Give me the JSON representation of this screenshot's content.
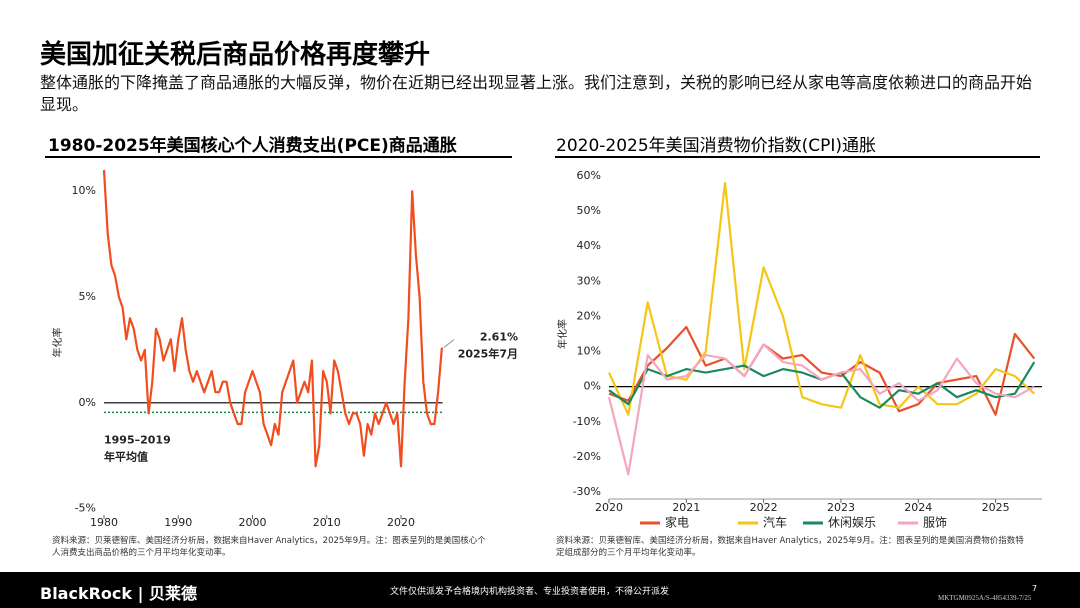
{
  "header": {
    "title": "美国加征关税后商品价格再度攀升",
    "subtitle": "整体通胀的下降掩盖了商品通胀的大幅反弹，物价在近期已经出现显著上涨。我们注意到，关税的影响已经从家电等高度依赖进口的商品开始显现。"
  },
  "chart_data": [
    {
      "type": "line",
      "title": "1980-2025年美国核心个人消费支出(PCE)商品通胀",
      "ylabel": "年化率",
      "color": "#f04e1e",
      "x": [
        1980,
        1980.5,
        1981,
        1981.5,
        1982,
        1982.5,
        1983,
        1983.5,
        1984,
        1984.5,
        1985,
        1985.5,
        1986,
        1986.5,
        1987,
        1987.5,
        1988,
        1988.5,
        1989,
        1989.5,
        1990,
        1990.5,
        1991,
        1991.5,
        1992,
        1992.5,
        1993,
        1993.5,
        1994,
        1994.5,
        1995,
        1995.5,
        1996,
        1996.5,
        1997,
        1997.5,
        1998,
        1998.5,
        1999,
        1999.5,
        2000,
        2000.5,
        2001,
        2001.5,
        2002,
        2002.5,
        2003,
        2003.5,
        2004,
        2004.5,
        2005,
        2005.5,
        2006,
        2006.5,
        2007,
        2007.5,
        2008,
        2008.5,
        2009,
        2009.5,
        2010,
        2010.5,
        2011,
        2011.5,
        2012,
        2012.5,
        2013,
        2013.5,
        2014,
        2014.5,
        2015,
        2015.5,
        2016,
        2016.5,
        2017,
        2017.5,
        2018,
        2018.5,
        2019,
        2019.5,
        2020,
        2020.5,
        2021,
        2021.5,
        2022,
        2022.5,
        2023,
        2023.5,
        2024,
        2024.5,
        2025,
        2025.5
      ],
      "values": [
        11,
        8,
        6.5,
        6,
        5,
        4.5,
        3,
        4,
        3.5,
        2.5,
        2,
        2.5,
        -0.5,
        1,
        3.5,
        3,
        2,
        2.5,
        3,
        1.5,
        3,
        4,
        2.5,
        1.5,
        1,
        1.5,
        1,
        0.5,
        1,
        1.5,
        0.5,
        0.5,
        1,
        1,
        0,
        -0.5,
        -1,
        -1,
        0.5,
        1,
        1.5,
        1,
        0.5,
        -1,
        -1.5,
        -2,
        -1,
        -1.5,
        0.5,
        1,
        1.5,
        2,
        0,
        0.5,
        1,
        0.5,
        2,
        -3,
        -2,
        1.5,
        1,
        -0.5,
        2,
        1.5,
        0.5,
        -0.5,
        -1,
        -0.5,
        -0.5,
        -1,
        -2.5,
        -1,
        -1.5,
        -0.5,
        -1,
        -0.5,
        0,
        -0.5,
        -1,
        -0.5,
        -3,
        1,
        4,
        10,
        7,
        5,
        1,
        -0.5,
        -1,
        -1,
        0.5,
        2.61
      ],
      "xlim": [
        1980,
        2025.6
      ],
      "ylim": [
        -5.3,
        11
      ],
      "xticks": [
        1980,
        1990,
        2000,
        2010,
        2020
      ],
      "yticks": [
        {
          "value": -5,
          "label": "-5%"
        },
        {
          "value": 0,
          "label": "0%"
        },
        {
          "value": 5,
          "label": "5%"
        },
        {
          "value": 10,
          "label": "10%"
        }
      ],
      "annotations": [
        {
          "text": "2.61%"
        },
        {
          "text": "2025年7月"
        }
      ],
      "reference_line": {
        "value": -0.45,
        "color": "#1a8a4a",
        "label_lines": [
          "1995–2019",
          "年平均值"
        ]
      },
      "source": "资料来源：贝莱德智库、美国经济分析局，数据来自Haver Analytics，2025年9月。注：图表呈列的是美国核心个人消费支出商品价格的三个月平均年化变动率。"
    },
    {
      "type": "line",
      "title": "2020-2025年美国消费物价指数(CPI)通胀",
      "ylabel": "年化率",
      "x": [
        2020,
        2020.25,
        2020.5,
        2020.75,
        2021,
        2021.25,
        2021.5,
        2021.75,
        2022,
        2022.25,
        2022.5,
        2022.75,
        2023,
        2023.25,
        2023.5,
        2023.75,
        2024,
        2024.25,
        2024.5,
        2024.75,
        2025,
        2025.25,
        2025.5
      ],
      "series": [
        {
          "name": "家电",
          "color": "#e8502a",
          "values": [
            -2,
            -4,
            6,
            11,
            17,
            6,
            8,
            3,
            12,
            8,
            9,
            4,
            3,
            7,
            4,
            -7,
            -5,
            1,
            2,
            3,
            -8,
            15,
            8
          ]
        },
        {
          "name": "汽车",
          "color": "#f5c518",
          "values": [
            4,
            -8,
            24,
            3,
            2,
            10,
            58,
            5,
            34,
            20,
            -3,
            -5,
            -6,
            9,
            -5,
            -6,
            0,
            -5,
            -5,
            -2,
            5,
            3,
            -2
          ]
        },
        {
          "name": "休闲娱乐",
          "color": "#1a8a5a",
          "values": [
            -1,
            -5,
            5,
            3,
            5,
            4,
            5,
            6,
            3,
            5,
            4,
            2,
            4,
            -3,
            -6,
            -1,
            -2,
            1,
            -3,
            -1,
            -3,
            -2,
            7
          ]
        },
        {
          "name": "服饰",
          "color": "#f4a6c0",
          "values": [
            -3,
            -25,
            9,
            2,
            3,
            9,
            8,
            3,
            12,
            7,
            6,
            2,
            4,
            5,
            -2,
            1,
            -4,
            -1,
            8,
            1,
            -2,
            -3,
            0
          ]
        }
      ],
      "xlim": [
        2020,
        2025.6
      ],
      "ylim": [
        -32,
        62
      ],
      "xticks": [
        2020,
        2021,
        2022,
        2023,
        2024,
        2025
      ],
      "yticks": [
        {
          "value": -30,
          "label": "-30%"
        },
        {
          "value": -20,
          "label": "-20%"
        },
        {
          "value": -10,
          "label": "-10%"
        },
        {
          "value": 0,
          "label": "0%"
        },
        {
          "value": 10,
          "label": "10%"
        },
        {
          "value": 20,
          "label": "20%"
        },
        {
          "value": 30,
          "label": "30%"
        },
        {
          "value": 40,
          "label": "40%"
        },
        {
          "value": 50,
          "label": "50%"
        },
        {
          "value": 60,
          "label": "60%"
        }
      ],
      "source": "资料来源：贝莱德智库、美国经济分析局，数据来自Haver Analytics，2025年9月。注：图表呈列的是美国消费物价指数特定组成部分的三个月平均年化变动率。"
    }
  ],
  "footer": {
    "brand": "BlackRock | 贝莱德",
    "disclaimer": "文件仅供派发予合格境内机构投资者、专业投资者使用，不得公开派发",
    "code": "MKTGM0925A/S-4854339-7/25",
    "page": "7"
  }
}
